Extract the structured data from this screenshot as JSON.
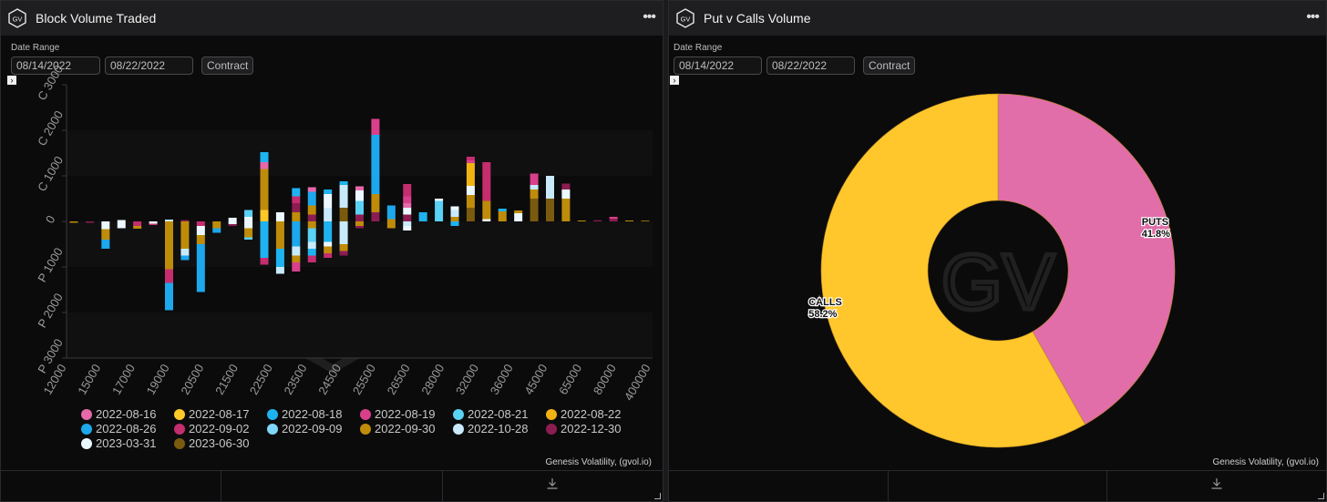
{
  "left_panel": {
    "title": "Block Volume Traded",
    "date_range_label": "Date Range",
    "start_date": "08/14/2022",
    "end_date": "08/22/2022",
    "contract_label": "Contract",
    "expand_glyph": "›",
    "credit": "Genesis Volatility, (gvol.io)"
  },
  "right_panel": {
    "title": "Put v Calls Volume",
    "date_range_label": "Date Range",
    "start_date": "08/14/2022",
    "end_date": "08/22/2022",
    "contract_label": "Contract",
    "expand_glyph": "›",
    "credit": "Genesis Volatility, (gvol.io)"
  },
  "header_icons": {
    "logo": "gv-logo-icon",
    "menu": "more-vert-icon",
    "download": "download-icon"
  },
  "logo_text": "GV",
  "watermark_text": "GV",
  "chart_data": [
    {
      "type": "bar",
      "stacked": true,
      "y_tick_labels": [
        "C 3000",
        "C 2000",
        "C 1000",
        "0",
        "P 1000",
        "P 2000",
        "P 3000"
      ],
      "ylim": [
        -3000,
        3000
      ],
      "grid": true,
      "x_tick_labels": [
        "12000",
        "15000",
        "17000",
        "19000",
        "20500",
        "21500",
        "22500",
        "23500",
        "24500",
        "25500",
        "26500",
        "28000",
        "32000",
        "36000",
        "45000",
        "65000",
        "80000",
        "400000"
      ],
      "series": [
        {
          "name": "2022-08-16",
          "color": "#e769a9"
        },
        {
          "name": "2022-08-17",
          "color": "#ffc928"
        },
        {
          "name": "2022-08-18",
          "color": "#1eb3f0"
        },
        {
          "name": "2022-08-19",
          "color": "#d9408b"
        },
        {
          "name": "2022-08-21",
          "color": "#5ad1f5"
        },
        {
          "name": "2022-08-22",
          "color": "#f2b312"
        },
        {
          "name": "2022-08-26",
          "color": "#1da7ec"
        },
        {
          "name": "2022-09-02",
          "color": "#c52d6f"
        },
        {
          "name": "2022-09-09",
          "color": "#7fd6f8"
        },
        {
          "name": "2022-09-30",
          "color": "#bf8c0a"
        },
        {
          "name": "2022-10-28",
          "color": "#c8eafb"
        },
        {
          "name": "2022-12-30",
          "color": "#8c1d52"
        },
        {
          "name": "2023-03-31",
          "color": "#ecf8ff"
        },
        {
          "name": "2023-06-30",
          "color": "#7a5a0e"
        }
      ],
      "bars": [
        {
          "cat": 0,
          "calls": [],
          "puts": [
            [
              9,
              30
            ]
          ]
        },
        {
          "cat": 1,
          "calls": [],
          "puts": [
            [
              11,
              30
            ]
          ]
        },
        {
          "cat": 2,
          "calls": [],
          "puts": [
            [
              12,
              170
            ],
            [
              9,
              230
            ],
            [
              6,
              200
            ]
          ]
        },
        {
          "cat": 3,
          "calls": [
            [
              12,
              30
            ]
          ],
          "puts": [
            [
              12,
              150
            ]
          ]
        },
        {
          "cat": 4,
          "calls": [],
          "puts": [
            [
              7,
              100
            ],
            [
              9,
              60
            ]
          ]
        },
        {
          "cat": 5,
          "calls": [],
          "puts": [
            [
              12,
              50
            ],
            [
              7,
              30
            ]
          ]
        },
        {
          "cat": 6,
          "calls": [
            [
              10,
              40
            ]
          ],
          "puts": [
            [
              9,
              1050
            ],
            [
              7,
              300
            ],
            [
              6,
              600
            ]
          ]
        },
        {
          "cat": 7,
          "calls": [
            [
              11,
              30
            ]
          ],
          "puts": [
            [
              9,
              600
            ],
            [
              10,
              150
            ],
            [
              6,
              100
            ]
          ]
        },
        {
          "cat": 8,
          "calls": [],
          "puts": [
            [
              7,
              100
            ],
            [
              12,
              200
            ],
            [
              9,
              200
            ],
            [
              6,
              1050
            ]
          ]
        },
        {
          "cat": 9,
          "calls": [],
          "puts": [
            [
              9,
              150
            ],
            [
              6,
              100
            ]
          ]
        },
        {
          "cat": 10,
          "calls": [
            [
              12,
              80
            ]
          ],
          "puts": [
            [
              12,
              60
            ],
            [
              11,
              40
            ]
          ]
        },
        {
          "cat": 11,
          "calls": [
            [
              12,
              100
            ],
            [
              4,
              150
            ]
          ],
          "puts": [
            [
              12,
              150
            ],
            [
              9,
              200
            ],
            [
              4,
              50
            ]
          ]
        },
        {
          "cat": 12,
          "calls": [
            [
              1,
              250
            ],
            [
              9,
              900
            ],
            [
              0,
              150
            ],
            [
              2,
              220
            ]
          ],
          "puts": [
            [
              2,
              800
            ],
            [
              7,
              150
            ]
          ]
        },
        {
          "cat": 13,
          "calls": [
            [
              12,
              200
            ]
          ],
          "puts": [
            [
              9,
              600
            ],
            [
              2,
              400
            ],
            [
              10,
              150
            ]
          ]
        },
        {
          "cat": 14,
          "calls": [
            [
              9,
              200
            ],
            [
              11,
              200
            ],
            [
              7,
              150
            ],
            [
              2,
              180
            ]
          ],
          "puts": [
            [
              6,
              550
            ],
            [
              10,
              200
            ],
            [
              9,
              150
            ],
            [
              3,
              200
            ]
          ]
        },
        {
          "cat": 15,
          "calls": [
            [
              11,
              150
            ],
            [
              9,
              200
            ],
            [
              6,
              300
            ],
            [
              0,
              100
            ]
          ],
          "puts": [
            [
              9,
              150
            ],
            [
              4,
              300
            ],
            [
              10,
              150
            ],
            [
              2,
              150
            ],
            [
              7,
              150
            ]
          ]
        },
        {
          "cat": 16,
          "calls": [
            [
              10,
              300
            ],
            [
              12,
              300
            ],
            [
              2,
              100
            ]
          ],
          "puts": [
            [
              2,
              450
            ],
            [
              12,
              100
            ],
            [
              9,
              150
            ],
            [
              7,
              100
            ]
          ]
        },
        {
          "cat": 17,
          "calls": [
            [
              13,
              300
            ],
            [
              10,
              500
            ],
            [
              2,
              80
            ]
          ],
          "puts": [
            [
              10,
              500
            ],
            [
              9,
              150
            ],
            [
              11,
              100
            ]
          ]
        },
        {
          "cat": 18,
          "calls": [
            [
              11,
              150
            ],
            [
              4,
              300
            ],
            [
              12,
              230
            ],
            [
              0,
              90
            ]
          ],
          "puts": [
            [
              9,
              100
            ],
            [
              11,
              50
            ]
          ]
        },
        {
          "cat": 19,
          "calls": [
            [
              11,
              200
            ],
            [
              9,
              400
            ],
            [
              6,
              1300
            ],
            [
              3,
              350
            ]
          ],
          "puts": []
        },
        {
          "cat": 20,
          "calls": [
            [
              9,
              50
            ],
            [
              6,
              300
            ]
          ],
          "puts": [
            [
              9,
              150
            ]
          ]
        },
        {
          "cat": 21,
          "calls": [
            [
              11,
              150
            ],
            [
              12,
              150
            ],
            [
              0,
              100
            ],
            [
              3,
              150
            ],
            [
              7,
              270
            ]
          ],
          "puts": [
            [
              10,
              100
            ],
            [
              12,
              100
            ]
          ]
        },
        {
          "cat": 22,
          "calls": [
            [
              2,
              200
            ]
          ],
          "puts": []
        },
        {
          "cat": 23,
          "calls": [
            [
              4,
              450
            ],
            [
              12,
              50
            ]
          ],
          "puts": []
        },
        {
          "cat": 24,
          "calls": [
            [
              9,
              100
            ],
            [
              10,
              150
            ],
            [
              12,
              80
            ]
          ],
          "puts": [
            [
              2,
              100
            ]
          ]
        },
        {
          "cat": 25,
          "calls": [
            [
              13,
              300
            ],
            [
              9,
              280
            ],
            [
              12,
              200
            ],
            [
              5,
              500
            ],
            [
              3,
              60
            ],
            [
              7,
              80
            ]
          ],
          "puts": []
        },
        {
          "cat": 26,
          "calls": [
            [
              12,
              50
            ],
            [
              9,
              400
            ],
            [
              7,
              850
            ]
          ],
          "puts": []
        },
        {
          "cat": 27,
          "calls": [
            [
              9,
              220
            ],
            [
              2,
              60
            ]
          ],
          "puts": []
        },
        {
          "cat": 28,
          "calls": [
            [
              12,
              180
            ],
            [
              9,
              60
            ]
          ],
          "puts": []
        },
        {
          "cat": 29,
          "calls": [
            [
              13,
              500
            ],
            [
              9,
              200
            ],
            [
              10,
              100
            ],
            [
              3,
              250
            ]
          ],
          "puts": []
        },
        {
          "cat": 30,
          "calls": [
            [
              13,
              500
            ],
            [
              10,
              500
            ]
          ],
          "puts": []
        },
        {
          "cat": 31,
          "calls": [
            [
              9,
              500
            ],
            [
              12,
              200
            ],
            [
              11,
              130
            ]
          ],
          "puts": []
        },
        {
          "cat": 32,
          "calls": [
            [
              9,
              20
            ]
          ],
          "puts": []
        },
        {
          "cat": 33,
          "calls": [
            [
              11,
              25
            ]
          ],
          "puts": []
        },
        {
          "cat": 34,
          "calls": [
            [
              11,
              60
            ],
            [
              3,
              40
            ]
          ],
          "puts": []
        },
        {
          "cat": 35,
          "calls": [
            [
              9,
              20
            ]
          ],
          "puts": []
        },
        {
          "cat": 36,
          "calls": [
            [
              9,
              15
            ]
          ],
          "puts": []
        }
      ]
    },
    {
      "type": "pie",
      "donut": true,
      "slices": [
        {
          "label": "PUTS",
          "value": 41.8,
          "pct_text": "41.8%",
          "color": "#e16da9"
        },
        {
          "label": "CALLS",
          "value": 58.2,
          "pct_text": "58.2%",
          "color": "#ffc72c"
        }
      ]
    }
  ]
}
